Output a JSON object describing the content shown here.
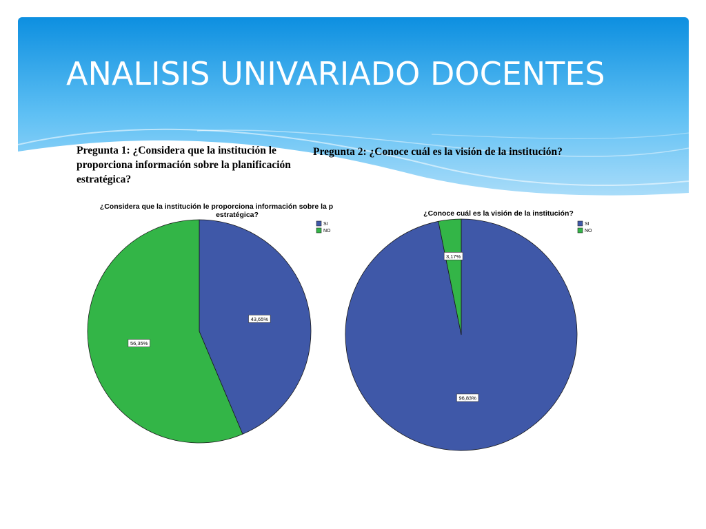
{
  "slide": {
    "title": "ANALISIS UNIVARIADO DOCENTES"
  },
  "question1": {
    "text": "Pregunta 1: ¿Considera que la institución le proporciona información sobre la planificación estratégica?"
  },
  "question2": {
    "text": "Pregunta 2: ¿Conoce cuál es la visión de la institución?"
  },
  "colors": {
    "si": "#3f58a8",
    "no": "#33b547",
    "header_top": "#0d8fe0",
    "header_bottom": "#bfe4fb"
  },
  "chart_data": [
    {
      "type": "pie",
      "title_lines": [
        "¿Considera que la institución le proporciona información sobre la p",
        "estratégica?"
      ],
      "legend": [
        "SI",
        "NO"
      ],
      "legend_placement": "top-right",
      "slices": [
        {
          "name": "SI",
          "value": 43.65,
          "label": "43,65%"
        },
        {
          "name": "NO",
          "value": 56.35,
          "label": "56,35%"
        }
      ]
    },
    {
      "type": "pie",
      "title_lines": [
        "¿Conoce cuál es la visión de la institución?"
      ],
      "legend": [
        "SI",
        "NO"
      ],
      "legend_placement": "top-right",
      "slices": [
        {
          "name": "SI",
          "value": 96.83,
          "label": "96,83%"
        },
        {
          "name": "NO",
          "value": 3.17,
          "label": "3,17%"
        }
      ]
    }
  ]
}
